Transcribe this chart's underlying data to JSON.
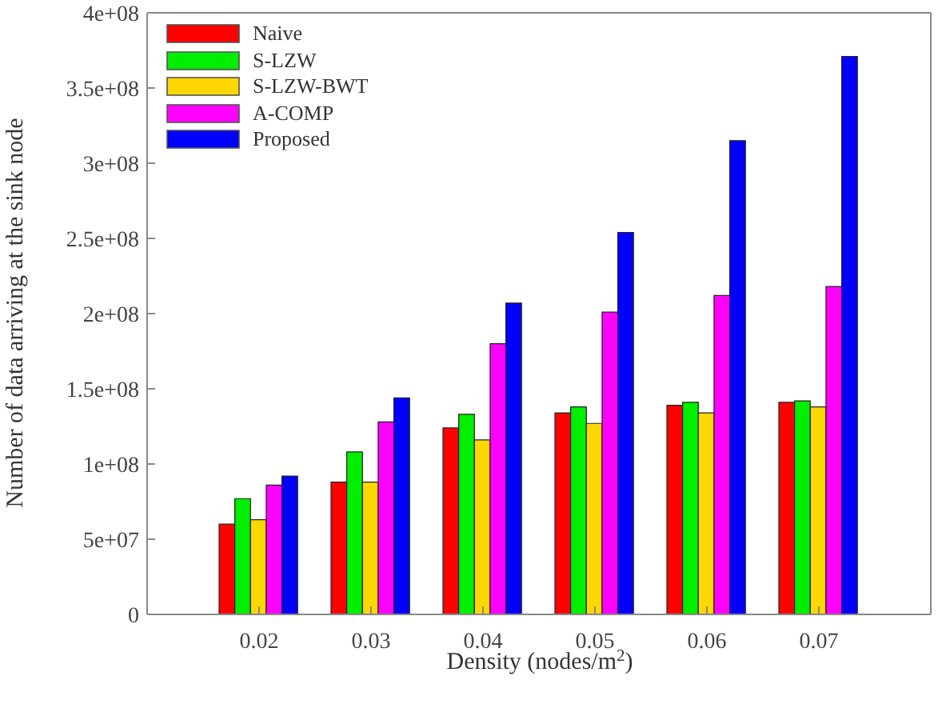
{
  "chart_data": {
    "type": "bar",
    "xlabel": "Density (nodes/m$^{2}$)",
    "ylabel": "Number of data arriving at the sink node",
    "x": [
      0.02,
      0.03,
      0.04,
      0.05,
      0.06,
      0.07
    ],
    "xlim": [
      0.01,
      0.08
    ],
    "xticks": [
      0.02,
      0.03,
      0.04,
      0.05,
      0.06,
      0.07
    ],
    "ylim": [
      0,
      400000000
    ],
    "yticks": [
      {
        "value": 0,
        "label": "0"
      },
      {
        "value": 50000000,
        "label": "5e+07"
      },
      {
        "value": 100000000,
        "label": "1e+08"
      },
      {
        "value": 150000000,
        "label": "1.5e+08"
      },
      {
        "value": 200000000,
        "label": "2e+08"
      },
      {
        "value": 250000000,
        "label": "2.5e+08"
      },
      {
        "value": 300000000,
        "label": "3e+08"
      },
      {
        "value": 350000000,
        "label": "3.5e+08"
      },
      {
        "value": 400000000,
        "label": "4e+08"
      }
    ],
    "series": [
      {
        "name": "Naive",
        "color": "#ff0000",
        "values": [
          60000000,
          88000000,
          124000000,
          134000000,
          139000000,
          141000000
        ]
      },
      {
        "name": "S-LZW",
        "color": "#00ee00",
        "values": [
          77000000,
          108000000,
          133000000,
          138000000,
          141000000,
          142000000
        ]
      },
      {
        "name": "S-LZW-BWT",
        "color": "#ffd700",
        "values": [
          63000000,
          88000000,
          116000000,
          127000000,
          134000000,
          138000000
        ]
      },
      {
        "name": "A-COMP",
        "color": "#ff00ff",
        "values": [
          86000000,
          128000000,
          180000000,
          201000000,
          212000000,
          218000000
        ]
      },
      {
        "name": "Proposed",
        "color": "#0000ff",
        "values": [
          92000000,
          144000000,
          207000000,
          254000000,
          315000000,
          371000000
        ]
      }
    ],
    "legend": "top left"
  }
}
